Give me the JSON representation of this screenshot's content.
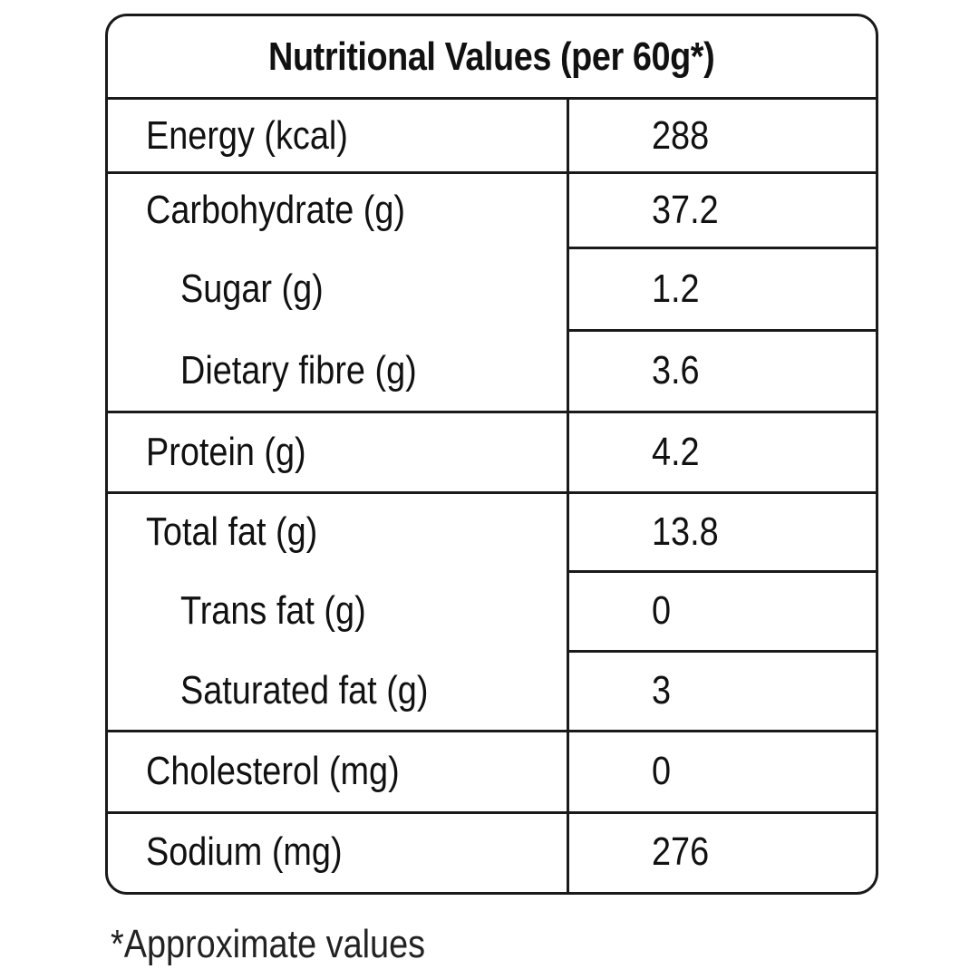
{
  "table": {
    "title": "Nutritional Values (per 60g*)",
    "rows": [
      {
        "label": "Energy (kcal)",
        "value": "288"
      },
      {
        "label": "Carbohydrate (g)",
        "value": "37.2"
      },
      {
        "label": "Sugar (g)",
        "value": "1.2"
      },
      {
        "label": "Dietary fibre (g)",
        "value": "3.6"
      },
      {
        "label": "Protein (g)",
        "value": "4.2"
      },
      {
        "label": "Total fat (g)",
        "value": "13.8"
      },
      {
        "label": "Trans fat (g)",
        "value": "0"
      },
      {
        "label": "Saturated fat (g)",
        "value": "3"
      },
      {
        "label": "Cholesterol (mg)",
        "value": "0"
      },
      {
        "label": "Sodium (mg)",
        "value": "276"
      }
    ]
  },
  "footnote": "*Approximate values"
}
